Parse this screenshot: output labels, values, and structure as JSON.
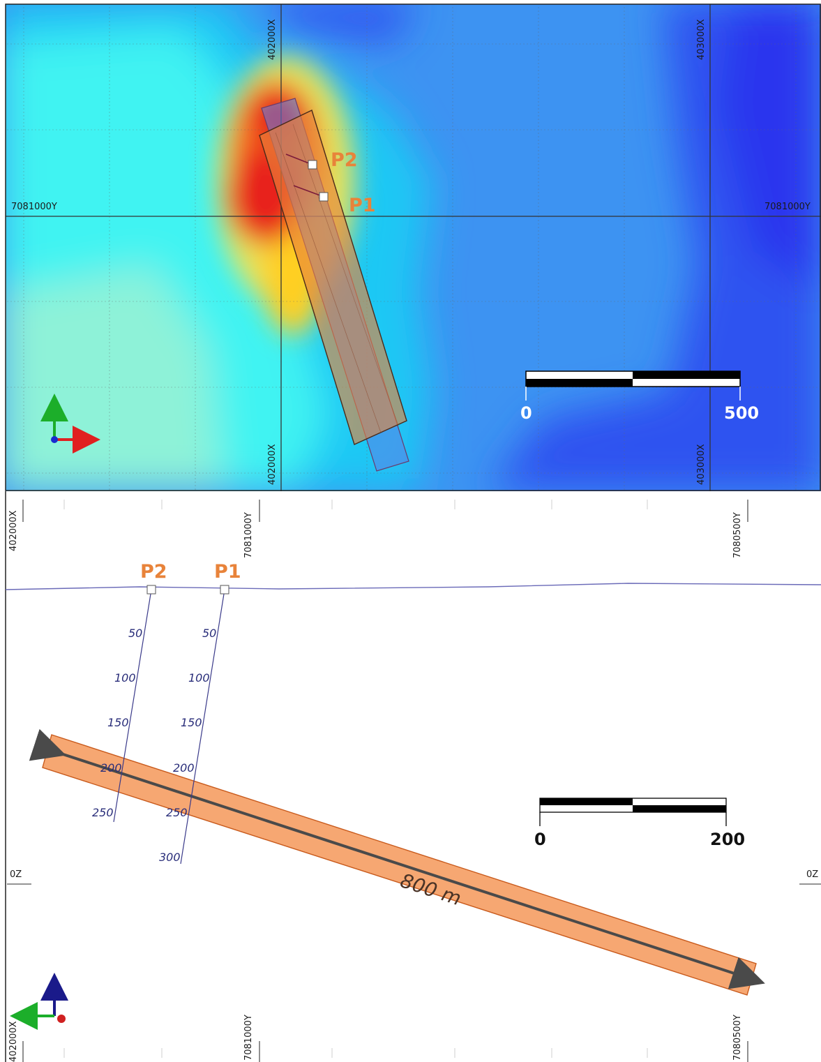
{
  "plan": {
    "grid_labels": {
      "x_402000_top": "402000X",
      "x_403000_top": "403000X",
      "x_402000_bottom": "402000X",
      "x_403000_bottom": "403000X",
      "y_left": "7081000Y",
      "y_right": "7081000Y"
    },
    "holes": [
      {
        "label": "P2"
      },
      {
        "label": "P1"
      }
    ],
    "scale_bar": {
      "start": "0",
      "end": "500"
    },
    "colors": {
      "hot": "#e8211c",
      "warm": "#ffcc00",
      "cool": "#17e4f5",
      "deep": "#3535f0",
      "zone": "#e8833a"
    }
  },
  "section": {
    "grid_labels": {
      "x_left_top": "402000X",
      "y_7081000_top": "7081000Y",
      "y_7080500_top": "7080500Y",
      "z_left": "0Z",
      "z_right": "0Z",
      "x_left_bottom": "402000X",
      "y_7081000_bottom": "7081000Y",
      "y_7080500_bottom": "7080500Y"
    },
    "holes": [
      {
        "label": "P2",
        "depths": [
          "50",
          "100",
          "150",
          "200",
          "250"
        ]
      },
      {
        "label": "P1",
        "depths": [
          "50",
          "100",
          "150",
          "200",
          "250",
          "300"
        ]
      }
    ],
    "zone": {
      "label": "800 m",
      "color": "#f6a772"
    },
    "scale_bar": {
      "start": "0",
      "end": "200"
    }
  }
}
